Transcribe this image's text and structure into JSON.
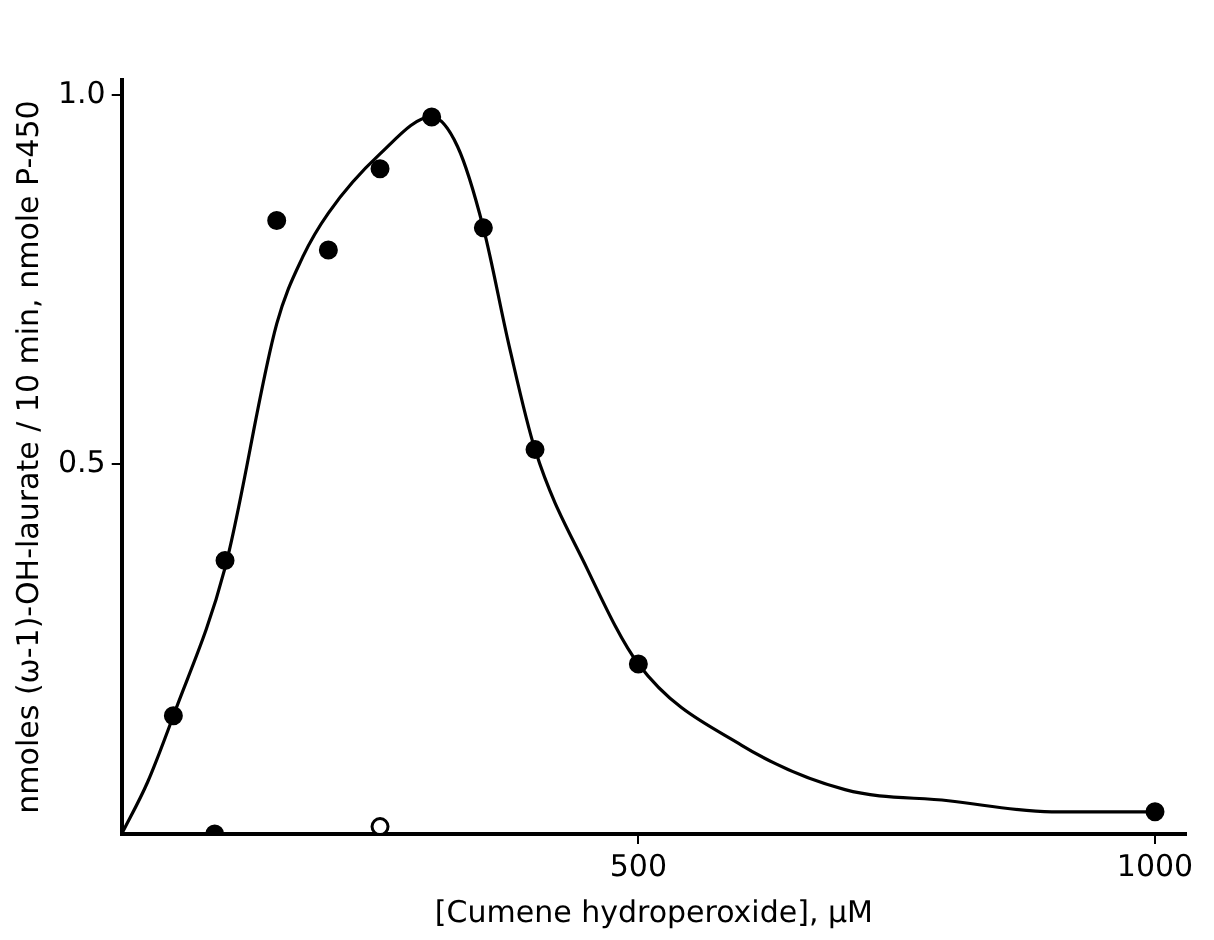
{
  "chart_data": {
    "type": "scatter",
    "xlabel": "[Cumene hydroperoxide], µM",
    "ylabel": "nmoles (ω-1)-OH-laurate / 10 min, nmole P-450",
    "xlim": [
      0,
      1030
    ],
    "ylim": [
      0,
      1.02
    ],
    "xticks": [
      500,
      1000
    ],
    "yticks": [
      0.5,
      {
        "value": 1,
        "label": "1.0"
      }
    ],
    "grid": false,
    "legend": false,
    "series": [
      {
        "type": "line",
        "color": "#000000",
        "marker": "none",
        "line_style": "solid",
        "x": [
          0,
          25,
          50,
          100,
          150,
          175,
          200,
          250,
          300,
          325,
          350,
          375,
          400,
          450,
          500,
          600,
          700,
          800,
          900,
          1000
        ],
        "values": [
          0,
          0.07,
          0.16,
          0.36,
          0.69,
          0.78,
          0.84,
          0.92,
          0.97,
          0.93,
          0.82,
          0.66,
          0.52,
          0.36,
          0.23,
          0.12,
          0.06,
          0.045,
          0.03,
          0.03
        ]
      },
      {
        "color": "#000000",
        "marker": "circle",
        "x": [
          50,
          100,
          150,
          200,
          250,
          300,
          350,
          400,
          500,
          1000,
          90
        ],
        "values": [
          0.16,
          0.37,
          0.83,
          0.79,
          0.9,
          0.97,
          0.82,
          0.52,
          0.23,
          0.03,
          0
        ]
      },
      {
        "color": "#ffffff",
        "marker": "circle",
        "x": [
          250
        ],
        "values": [
          0.01
        ]
      }
    ]
  }
}
